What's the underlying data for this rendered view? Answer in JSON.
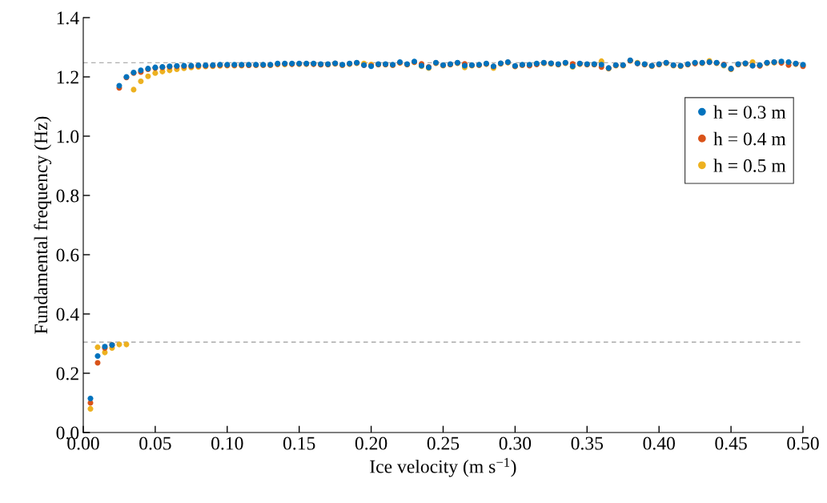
{
  "chart_data": {
    "type": "scatter",
    "xlabel": "Ice velocity (m s$^{−1}$)",
    "ylabel": "Fundamental frequency (Hz)",
    "x": [
      0.005,
      0.01,
      0.015,
      0.02,
      0.025,
      0.03,
      0.035,
      0.04,
      0.045,
      0.05,
      0.055,
      0.06,
      0.065,
      0.07,
      0.075,
      0.08,
      0.085,
      0.09,
      0.095,
      0.1,
      0.105,
      0.11,
      0.115,
      0.12,
      0.125,
      0.13,
      0.135,
      0.14,
      0.145,
      0.15,
      0.155,
      0.16,
      0.165,
      0.17,
      0.175,
      0.18,
      0.185,
      0.19,
      0.195,
      0.2,
      0.205,
      0.21,
      0.215,
      0.22,
      0.225,
      0.23,
      0.235,
      0.24,
      0.245,
      0.25,
      0.255,
      0.26,
      0.265,
      0.27,
      0.275,
      0.28,
      0.285,
      0.29,
      0.295,
      0.3,
      0.305,
      0.31,
      0.315,
      0.32,
      0.325,
      0.33,
      0.335,
      0.34,
      0.345,
      0.35,
      0.355,
      0.36,
      0.365,
      0.37,
      0.375,
      0.38,
      0.385,
      0.39,
      0.395,
      0.4,
      0.405,
      0.41,
      0.415,
      0.42,
      0.425,
      0.43,
      0.435,
      0.44,
      0.445,
      0.45,
      0.455,
      0.46,
      0.465,
      0.47,
      0.475,
      0.48,
      0.485,
      0.49,
      0.495,
      0.5
    ],
    "series": [
      {
        "name": "h = 0.3 m",
        "color": "#0072bd",
        "values": [
          0.115,
          0.258,
          0.29,
          0.295,
          1.17,
          1.2,
          1.215,
          1.222,
          1.228,
          1.232,
          1.234,
          1.236,
          1.237,
          1.238,
          1.238,
          1.239,
          1.239,
          1.24,
          1.241,
          1.241,
          1.241,
          1.241,
          1.241,
          1.241,
          1.241,
          1.241,
          1.245,
          1.245,
          1.245,
          1.245,
          1.245,
          1.245,
          1.243,
          1.243,
          1.246,
          1.241,
          1.245,
          1.248,
          1.24,
          1.236,
          1.243,
          1.243,
          1.241,
          1.25,
          1.243,
          1.252,
          1.238,
          1.232,
          1.248,
          1.24,
          1.243,
          1.248,
          1.238,
          1.24,
          1.241,
          1.245,
          1.236,
          1.246,
          1.25,
          1.237,
          1.241,
          1.241,
          1.245,
          1.248,
          1.246,
          1.243,
          1.248,
          1.236,
          1.245,
          1.243,
          1.243,
          1.241,
          1.23,
          1.24,
          1.24,
          1.256,
          1.246,
          1.243,
          1.238,
          1.243,
          1.248,
          1.24,
          1.238,
          1.243,
          1.248,
          1.248,
          1.25,
          1.248,
          1.24,
          1.228,
          1.243,
          1.246,
          1.238,
          1.24,
          1.248,
          1.25,
          1.252,
          1.25,
          1.245,
          1.241
        ]
      },
      {
        "name": "h = 0.4 m",
        "color": "#d95319",
        "values": [
          0.1,
          0.235,
          0.285,
          0.295,
          1.163,
          1.198,
          1.213,
          1.216,
          1.226,
          1.23,
          1.232,
          1.234,
          1.235,
          1.236,
          1.236,
          1.237,
          1.237,
          1.238,
          1.239,
          1.239,
          1.239,
          1.239,
          1.239,
          1.24,
          1.24,
          1.24,
          1.243,
          1.244,
          1.243,
          1.244,
          1.244,
          1.243,
          1.241,
          1.242,
          1.245,
          1.24,
          1.244,
          1.247,
          1.239,
          1.238,
          1.242,
          1.242,
          1.24,
          1.248,
          1.242,
          1.25,
          1.244,
          1.234,
          1.247,
          1.239,
          1.242,
          1.247,
          1.244,
          1.239,
          1.24,
          1.244,
          1.235,
          1.245,
          1.249,
          1.236,
          1.24,
          1.238,
          1.242,
          1.247,
          1.245,
          1.242,
          1.247,
          1.244,
          1.244,
          1.242,
          1.242,
          1.233,
          1.229,
          1.239,
          1.239,
          1.255,
          1.245,
          1.242,
          1.237,
          1.242,
          1.247,
          1.239,
          1.237,
          1.242,
          1.245,
          1.247,
          1.249,
          1.247,
          1.242,
          1.227,
          1.242,
          1.245,
          1.238,
          1.237,
          1.247,
          1.249,
          1.247,
          1.24,
          1.244,
          1.236
        ]
      },
      {
        "name": "h = 0.5 m",
        "color": "#edb120",
        "values": [
          0.08,
          0.288,
          0.27,
          0.285,
          0.297,
          0.297,
          1.157,
          1.185,
          1.202,
          1.213,
          1.218,
          1.222,
          1.226,
          1.229,
          1.232,
          1.234,
          1.235,
          1.236,
          1.237,
          1.238,
          1.238,
          1.238,
          1.239,
          1.239,
          1.239,
          1.239,
          1.242,
          1.242,
          1.243,
          1.243,
          1.243,
          1.243,
          1.241,
          1.241,
          1.244,
          1.239,
          1.243,
          1.246,
          1.245,
          1.242,
          1.241,
          1.241,
          1.239,
          1.247,
          1.241,
          1.249,
          1.236,
          1.23,
          1.246,
          1.238,
          1.241,
          1.246,
          1.232,
          1.238,
          1.239,
          1.243,
          1.23,
          1.244,
          1.248,
          1.235,
          1.239,
          1.239,
          1.243,
          1.246,
          1.244,
          1.241,
          1.246,
          1.234,
          1.243,
          1.241,
          1.241,
          1.253,
          1.228,
          1.238,
          1.238,
          1.254,
          1.248,
          1.241,
          1.236,
          1.241,
          1.246,
          1.238,
          1.236,
          1.241,
          1.246,
          1.246,
          1.254,
          1.246,
          1.238,
          1.226,
          1.241,
          1.244,
          1.25,
          1.238,
          1.246,
          1.248,
          1.25,
          1.248,
          1.243,
          1.239
        ]
      }
    ],
    "ref_lines": [
      {
        "axis": "y",
        "value": 1.248,
        "color": "#999999",
        "line_style": "dashed"
      },
      {
        "axis": "y",
        "value": 0.305,
        "color": "#999999",
        "line_style": "dashed"
      }
    ],
    "xlim": [
      0,
      0.5
    ],
    "ylim": [
      0,
      1.4
    ],
    "xticks": [
      {
        "value": 0,
        "label": "0.00"
      },
      {
        "value": 0.05,
        "label": "0.05"
      },
      {
        "value": 0.1,
        "label": "0.10"
      },
      {
        "value": 0.15,
        "label": "0.15"
      },
      {
        "value": 0.2,
        "label": "0.20"
      },
      {
        "value": 0.25,
        "label": "0.25"
      },
      {
        "value": 0.3,
        "label": "0.30"
      },
      {
        "value": 0.35,
        "label": "0.35"
      },
      {
        "value": 0.4,
        "label": "0.40"
      },
      {
        "value": 0.45,
        "label": "0.45"
      },
      {
        "value": 0.5,
        "label": "0.50"
      }
    ],
    "yticks": [
      {
        "value": 0,
        "label": "0.0"
      },
      {
        "value": 0.2,
        "label": "0.2"
      },
      {
        "value": 0.4,
        "label": "0.4"
      },
      {
        "value": 0.6,
        "label": "0.6"
      },
      {
        "value": 0.8,
        "label": "0.8"
      },
      {
        "value": 1,
        "label": "1.0"
      },
      {
        "value": 1.2,
        "label": "1.2"
      },
      {
        "value": 1.4,
        "label": "1.4"
      }
    ],
    "marker": "circle",
    "grid": false,
    "legend": "top right"
  }
}
